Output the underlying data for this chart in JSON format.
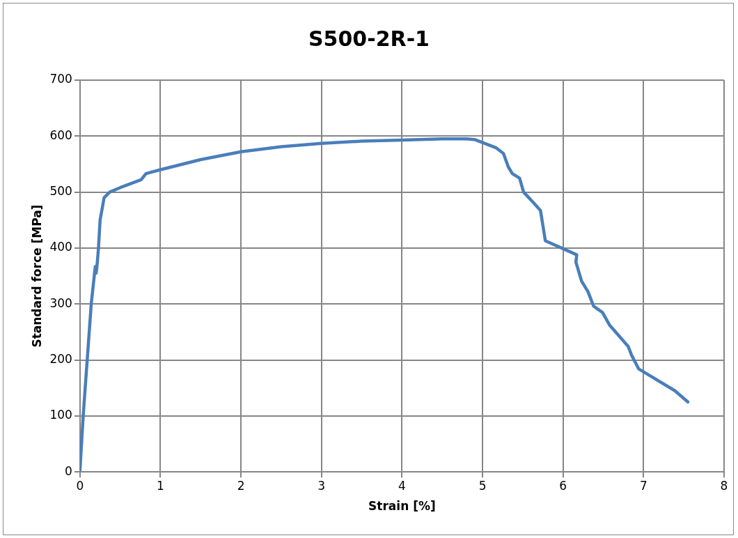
{
  "chart_data": {
    "type": "line",
    "title": "S500-2R-1",
    "xlabel": "Strain [%]",
    "ylabel": "Standard force [MPa]",
    "xlim": [
      0,
      8
    ],
    "xticks": [
      0,
      1,
      2,
      3,
      4,
      5,
      6,
      7,
      8
    ],
    "ylim": [
      0,
      700
    ],
    "yticks": [
      0,
      100,
      200,
      300,
      400,
      500,
      600,
      700
    ],
    "grid": true,
    "legend": false,
    "marker": "none",
    "line_style": "solid",
    "series": [
      {
        "color": "#4a7ebb",
        "x": [
          0,
          0.04,
          0.14,
          0.19,
          0.2,
          0.21,
          0.23,
          0.25,
          0.3,
          0.37,
          0.5,
          0.76,
          0.82,
          1,
          1.5,
          2,
          2.5,
          3,
          3.5,
          4,
          4.5,
          4.8,
          4.9,
          5.17,
          5.26,
          5.32,
          5.37,
          5.46,
          5.51,
          5.64,
          5.72,
          5.78,
          6.17,
          6.16,
          6.23,
          6.31,
          6.38,
          6.49,
          6.58,
          6.81,
          6.85,
          6.94,
          7.39,
          7.55
        ],
        "values": [
          3,
          100,
          300,
          367,
          355,
          365,
          400,
          450,
          490,
          500,
          508,
          522,
          533,
          540,
          558,
          572,
          581,
          587,
          591,
          593,
          595,
          595,
          594,
          579,
          569,
          545,
          533,
          525,
          500,
          480,
          467,
          413,
          388,
          375,
          341,
          322,
          296,
          285,
          262,
          224,
          209,
          184,
          145,
          125
        ]
      }
    ]
  }
}
